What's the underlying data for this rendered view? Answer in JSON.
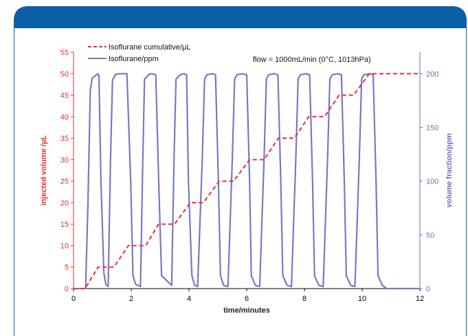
{
  "colors": {
    "header": "#0B5FA8",
    "frame": "#0B5FA8",
    "left_axis": "#E03030",
    "right_axis": "#6F6FB8",
    "cumulative": "#E53030",
    "ppm": "#7777C4"
  },
  "chart_data": {
    "type": "line",
    "annotation": "flow = 1000mL/min (0°C, 1013hPa)",
    "xlabel": "time/minutes",
    "ylabel_left": "injected volume /µL",
    "ylabel_right": "volume fraction/ppm",
    "xlim": [
      0,
      12
    ],
    "ylim_left": [
      0,
      55
    ],
    "ylim_right": [
      0,
      220
    ],
    "x_ticks": [
      0,
      2,
      4,
      6,
      8,
      10,
      12
    ],
    "y_left_ticks": [
      0,
      5,
      10,
      15,
      20,
      25,
      30,
      35,
      40,
      45,
      50,
      55
    ],
    "y_right_ticks": [
      0,
      50,
      100,
      150,
      200
    ],
    "legend": {
      "placement": "top-left"
    },
    "series": [
      {
        "name": "Isoflurane cumulative/µL",
        "axis": "left",
        "style": "dashed",
        "x": [
          0,
          0.4,
          0.85,
          1.4,
          1.9,
          2.5,
          2.95,
          3.5,
          4.05,
          4.5,
          5.05,
          5.55,
          6.1,
          6.6,
          7.1,
          7.65,
          8.15,
          8.7,
          9.2,
          9.7,
          10.25,
          10.75,
          12
        ],
        "y": [
          0,
          0,
          5,
          5,
          10,
          10,
          15,
          15,
          20,
          20,
          25,
          25,
          30,
          30,
          35,
          35,
          40,
          40,
          45,
          45,
          50,
          50,
          50
        ]
      },
      {
        "name": "Isoflurane/ppm",
        "axis": "right",
        "style": "solid",
        "x": [
          0,
          0.42,
          0.5,
          0.58,
          0.65,
          0.75,
          0.85,
          0.88,
          0.95,
          1.05,
          1.12,
          1.2,
          1.28,
          1.35,
          1.45,
          1.55,
          1.85,
          1.98,
          2.06,
          2.15,
          2.32,
          2.4,
          2.46,
          2.6,
          2.7,
          2.85,
          2.95,
          3.05,
          3.4,
          3.48,
          3.55,
          3.7,
          3.82,
          3.92,
          3.98,
          4.1,
          4.2,
          4.3,
          4.46,
          4.54,
          4.62,
          4.8,
          4.92,
          5.02,
          5.09,
          5.2,
          5.35,
          5.5,
          5.58,
          5.66,
          5.85,
          6.0,
          6.1,
          6.16,
          6.3,
          6.45,
          6.6,
          6.68,
          6.76,
          6.95,
          7.08,
          7.18,
          7.25,
          7.4,
          7.55,
          7.7,
          7.78,
          7.86,
          8.05,
          8.18,
          8.28,
          8.35,
          8.5,
          8.65,
          8.8,
          8.88,
          8.96,
          9.15,
          9.28,
          9.38,
          9.45,
          9.6,
          9.75,
          9.9,
          9.98,
          10.06,
          10.25,
          10.38,
          10.48,
          10.55,
          10.7,
          10.85,
          12
        ],
        "y": [
          0,
          0,
          80,
          185,
          196,
          198,
          200,
          198,
          100,
          15,
          4,
          2,
          120,
          194,
          199,
          200,
          200,
          100,
          12,
          4,
          2,
          120,
          195,
          199,
          200,
          199,
          100,
          12,
          3,
          120,
          195,
          199,
          200,
          199,
          100,
          12,
          3,
          2,
          120,
          195,
          199,
          200,
          199,
          100,
          12,
          3,
          2,
          120,
          195,
          199,
          200,
          199,
          100,
          12,
          3,
          2,
          120,
          195,
          199,
          200,
          199,
          100,
          12,
          3,
          2,
          120,
          195,
          199,
          200,
          199,
          100,
          12,
          3,
          2,
          120,
          195,
          199,
          200,
          199,
          100,
          12,
          3,
          2,
          120,
          195,
          199,
          200,
          199,
          100,
          12,
          3,
          0,
          0
        ]
      }
    ]
  }
}
